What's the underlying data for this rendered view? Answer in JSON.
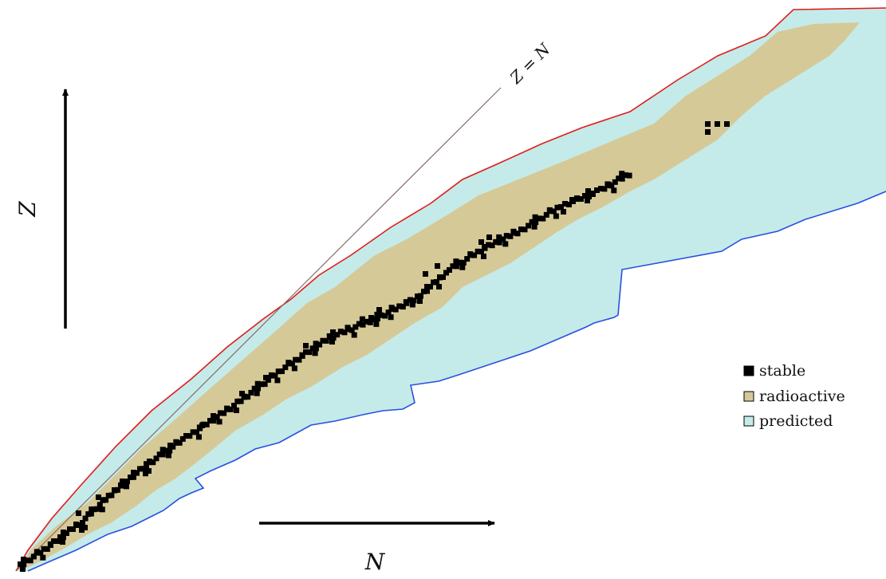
{
  "diagram": {
    "x_axis_label": "N",
    "y_axis_label": "Z",
    "diagonal_label": "Z = N",
    "legend": [
      {
        "key": "stable",
        "label": "stable",
        "color": "#000000"
      },
      {
        "key": "radioactive",
        "label": "radioactive",
        "color": "#d6c998"
      },
      {
        "key": "predicted",
        "label": "predicted",
        "color": "#c4ebe9"
      }
    ],
    "colors": {
      "stable": "#000000",
      "radioactive": "#d6c998",
      "predicted": "#c4ebe9",
      "proton_dripline": "#e11b1b",
      "neutron_dripline": "#2a4fe0",
      "diagonal": "#8a6a6a"
    }
  }
}
